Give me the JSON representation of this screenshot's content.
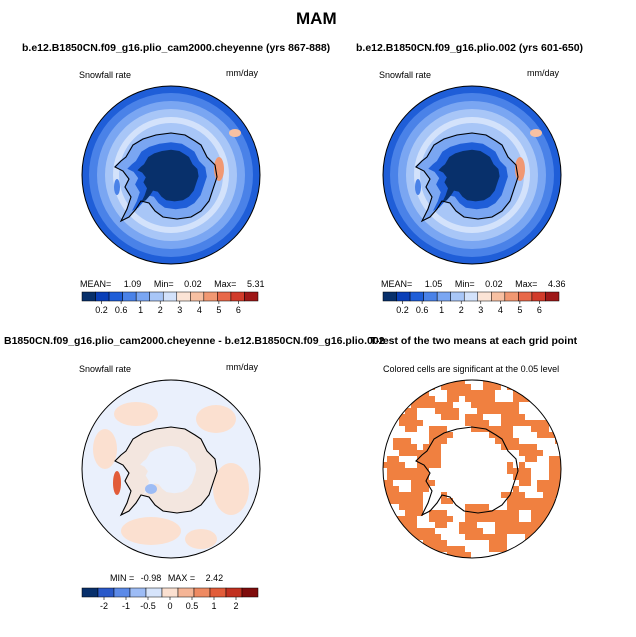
{
  "figure": {
    "title": "MAM",
    "palette_cool_warm": [
      "#08306b",
      "#0a3fb8",
      "#1f5ed8",
      "#4a82e8",
      "#7aa6f2",
      "#a8c6f7",
      "#d3e2fb",
      "#fbe4d6",
      "#f7c0a2",
      "#f19872",
      "#e8694a",
      "#d13b2a",
      "#9e1717"
    ],
    "palette_diff": [
      "#08306b",
      "#2a59c9",
      "#5c8ae8",
      "#9dbcf5",
      "#d6e4fb",
      "#fbe0d0",
      "#f5b596",
      "#ee8a62",
      "#e25c39",
      "#c1301f",
      "#7f0c0c"
    ],
    "significance_color": "#f08040",
    "coast_color": "#000000"
  },
  "chart_data": [
    {
      "type": "heatmap",
      "panel": "top-left",
      "title": "b.e12.B1850CN.f09_g16.plio_cam2000.cheyenne (yrs 867-888)",
      "variable_label": "Snowfall rate",
      "units_label": "mm/day",
      "stats": {
        "mean_label": "MEAN=",
        "mean": "1.09",
        "min_label": "Min=",
        "min": "0.02",
        "max_label": "Max=",
        "max": "5.31"
      },
      "colorbar": {
        "ticks": [
          "0.2",
          "0.6",
          "1",
          "2",
          "3",
          "4",
          "5",
          "6"
        ]
      }
    },
    {
      "type": "heatmap",
      "panel": "top-right",
      "title": "b.e12.B1850CN.f09_g16.plio.002 (yrs 601-650)",
      "variable_label": "Snowfall rate",
      "units_label": "mm/day",
      "stats": {
        "mean_label": "MEAN=",
        "mean": "1.05",
        "min_label": "Min=",
        "min": "0.02",
        "max_label": "Max=",
        "max": "4.36"
      },
      "colorbar": {
        "ticks": [
          "0.2",
          "0.6",
          "1",
          "2",
          "3",
          "4",
          "5",
          "6"
        ]
      }
    },
    {
      "type": "heatmap",
      "panel": "bottom-left",
      "title": "B1850CN.f09_g16.plio_cam2000.cheyenne - b.e12.B1850CN.f09_g16.plio.002",
      "variable_label": "Snowfall rate",
      "units_label": "mm/day",
      "stats": {
        "min_label": "MIN =",
        "min": "-0.98",
        "max_label": "MAX =",
        "max": "2.42"
      },
      "colorbar": {
        "ticks": [
          "-2",
          "-1",
          "-0.5",
          "0",
          "0.5",
          "1",
          "2"
        ]
      }
    },
    {
      "type": "heatmap",
      "panel": "bottom-right",
      "title": "T-test of the two means at each grid point",
      "subtitle": "Colored cells are significant at the 0.05 level"
    }
  ]
}
